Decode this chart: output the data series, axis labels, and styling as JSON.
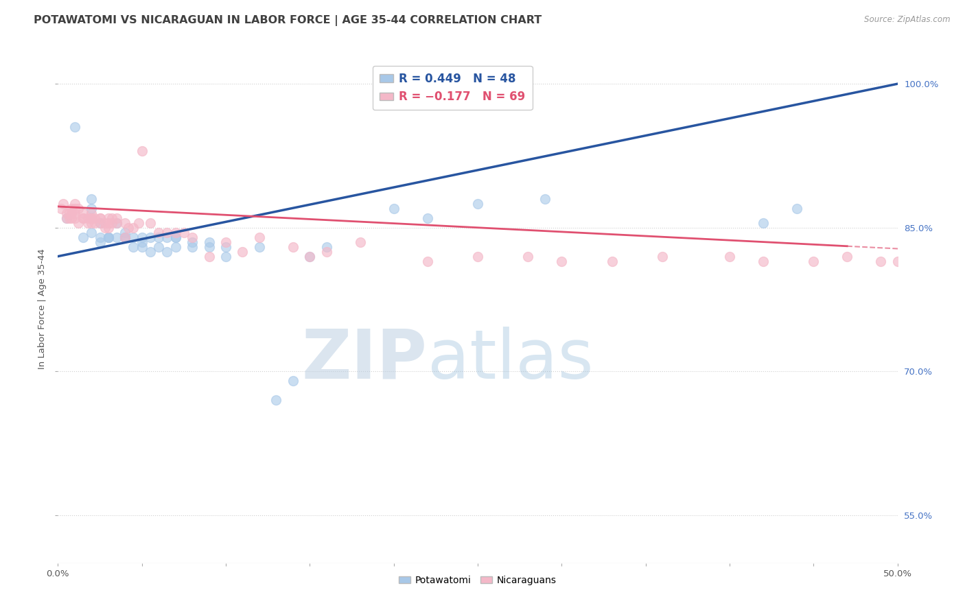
{
  "title": "POTAWATOMI VS NICARAGUAN IN LABOR FORCE | AGE 35-44 CORRELATION CHART",
  "source": "Source: ZipAtlas.com",
  "ylabel": "In Labor Force | Age 35-44",
  "xlim": [
    0.0,
    0.5
  ],
  "ylim": [
    0.5,
    1.03
  ],
  "xticks": [
    0.0,
    0.05,
    0.1,
    0.15,
    0.2,
    0.25,
    0.3,
    0.35,
    0.4,
    0.45,
    0.5
  ],
  "xticklabels_show": [
    "0.0%",
    "50.0%"
  ],
  "yticks": [
    0.55,
    0.7,
    0.85,
    1.0
  ],
  "yticklabels": [
    "55.0%",
    "70.0%",
    "85.0%",
    "100.0%"
  ],
  "blue_line_intercept": 0.82,
  "blue_line_slope": 0.36,
  "pink_line_intercept": 0.872,
  "pink_line_slope": -0.088,
  "blue_scatter_x": [
    0.005,
    0.01,
    0.015,
    0.02,
    0.02,
    0.02,
    0.025,
    0.025,
    0.025,
    0.03,
    0.03,
    0.03,
    0.035,
    0.035,
    0.04,
    0.04,
    0.04,
    0.045,
    0.045,
    0.05,
    0.05,
    0.05,
    0.055,
    0.055,
    0.06,
    0.06,
    0.065,
    0.065,
    0.07,
    0.07,
    0.07,
    0.08,
    0.08,
    0.09,
    0.09,
    0.1,
    0.1,
    0.12,
    0.13,
    0.14,
    0.15,
    0.16,
    0.2,
    0.22,
    0.25,
    0.29,
    0.42,
    0.44
  ],
  "blue_scatter_y": [
    0.86,
    0.955,
    0.84,
    0.87,
    0.88,
    0.845,
    0.835,
    0.855,
    0.84,
    0.84,
    0.84,
    0.84,
    0.84,
    0.855,
    0.84,
    0.845,
    0.84,
    0.83,
    0.84,
    0.83,
    0.84,
    0.835,
    0.825,
    0.84,
    0.83,
    0.84,
    0.825,
    0.84,
    0.83,
    0.84,
    0.84,
    0.83,
    0.835,
    0.83,
    0.835,
    0.82,
    0.83,
    0.83,
    0.67,
    0.69,
    0.82,
    0.83,
    0.87,
    0.86,
    0.875,
    0.88,
    0.855,
    0.87
  ],
  "pink_scatter_x": [
    0.002,
    0.003,
    0.005,
    0.005,
    0.007,
    0.007,
    0.008,
    0.008,
    0.008,
    0.01,
    0.01,
    0.01,
    0.01,
    0.012,
    0.012,
    0.015,
    0.015,
    0.015,
    0.018,
    0.018,
    0.02,
    0.02,
    0.02,
    0.02,
    0.022,
    0.022,
    0.025,
    0.025,
    0.025,
    0.028,
    0.028,
    0.03,
    0.03,
    0.03,
    0.032,
    0.032,
    0.035,
    0.035,
    0.04,
    0.04,
    0.042,
    0.045,
    0.048,
    0.05,
    0.055,
    0.06,
    0.065,
    0.07,
    0.075,
    0.08,
    0.09,
    0.1,
    0.11,
    0.12,
    0.14,
    0.15,
    0.16,
    0.18,
    0.22,
    0.25,
    0.28,
    0.3,
    0.33,
    0.36,
    0.4,
    0.42,
    0.45,
    0.47,
    0.49,
    0.5
  ],
  "pink_scatter_y": [
    0.87,
    0.875,
    0.865,
    0.86,
    0.86,
    0.865,
    0.865,
    0.86,
    0.87,
    0.86,
    0.865,
    0.87,
    0.875,
    0.855,
    0.87,
    0.86,
    0.865,
    0.86,
    0.855,
    0.86,
    0.855,
    0.86,
    0.865,
    0.86,
    0.855,
    0.86,
    0.855,
    0.86,
    0.86,
    0.85,
    0.855,
    0.85,
    0.855,
    0.86,
    0.855,
    0.86,
    0.855,
    0.86,
    0.84,
    0.855,
    0.85,
    0.85,
    0.855,
    0.93,
    0.855,
    0.845,
    0.845,
    0.845,
    0.845,
    0.84,
    0.82,
    0.835,
    0.825,
    0.84,
    0.83,
    0.82,
    0.825,
    0.835,
    0.815,
    0.82,
    0.82,
    0.815,
    0.815,
    0.82,
    0.82,
    0.815,
    0.815,
    0.82,
    0.815,
    0.815
  ],
  "watermark_zip": "ZIP",
  "watermark_atlas": "atlas",
  "blue_scatter_color": "#a8c8e8",
  "pink_scatter_color": "#f4b8c8",
  "blue_line_color": "#2855a0",
  "pink_line_color": "#e05070",
  "grid_color": "#d0d0d0",
  "bg_color": "#ffffff",
  "title_color": "#404040",
  "right_tick_color": "#4472c4",
  "title_fontsize": 11.5,
  "label_fontsize": 9.5,
  "tick_fontsize": 9.5
}
